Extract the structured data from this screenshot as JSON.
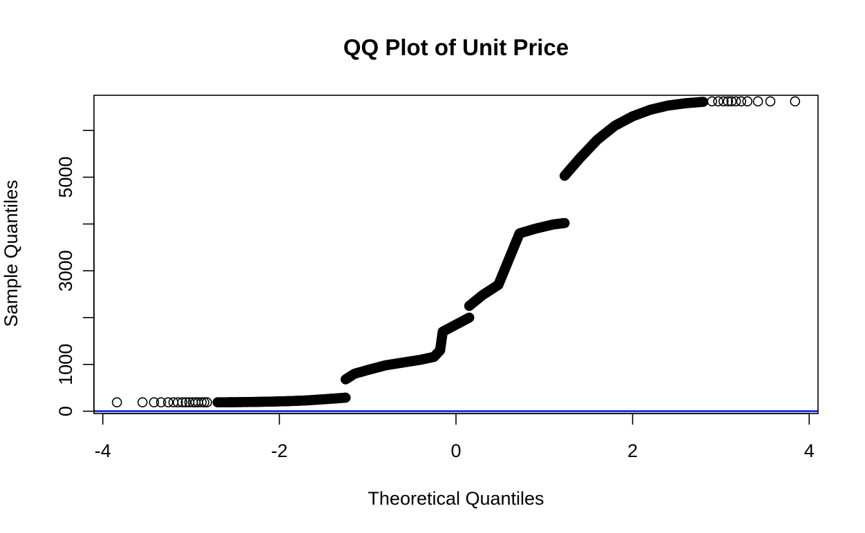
{
  "chart_data": {
    "type": "scatter",
    "title": "QQ Plot of Unit Price",
    "xlabel": "Theoretical Quantiles",
    "ylabel": "Sample Quantiles",
    "xlim": [
      -4.1,
      4.1
    ],
    "ylim": [
      -50,
      6750
    ],
    "x_ticks": [
      -4,
      -2,
      0,
      2,
      4
    ],
    "x_tick_labels": [
      "-4",
      "-2",
      "0",
      "2",
      "4"
    ],
    "y_ticks": [
      0,
      1000,
      2000,
      3000,
      4000,
      5000,
      6000
    ],
    "y_tick_labels": [
      "0",
      "1000",
      "",
      "3000",
      "",
      "5000",
      ""
    ],
    "grid": false,
    "legend": "none",
    "reference_line": {
      "slope": 0,
      "intercept": 0,
      "color": "#1a33d6"
    },
    "point_color": "#000000",
    "marker": "open-circle",
    "series": [
      {
        "values": [
          {
            "x": -3.84,
            "y": 190
          },
          {
            "x": -3.55,
            "y": 190
          },
          {
            "x": -3.42,
            "y": 190
          },
          {
            "x": -3.34,
            "y": 190
          },
          {
            "x": -3.26,
            "y": 190
          },
          {
            "x": -3.2,
            "y": 190
          },
          {
            "x": -3.15,
            "y": 190
          },
          {
            "x": -3.1,
            "y": 190
          },
          {
            "x": -3.06,
            "y": 190
          },
          {
            "x": -3.02,
            "y": 190
          },
          {
            "x": -2.98,
            "y": 190
          },
          {
            "x": -2.95,
            "y": 190
          },
          {
            "x": -2.92,
            "y": 190
          },
          {
            "x": -2.88,
            "y": 190
          },
          {
            "x": -2.85,
            "y": 190
          },
          {
            "x": -2.82,
            "y": 190
          },
          {
            "x": -2.7,
            "y": 190
          },
          {
            "x": -2.5,
            "y": 193
          },
          {
            "x": -2.3,
            "y": 198
          },
          {
            "x": -2.1,
            "y": 205
          },
          {
            "x": -1.9,
            "y": 215
          },
          {
            "x": -1.7,
            "y": 230
          },
          {
            "x": -1.5,
            "y": 255
          },
          {
            "x": -1.35,
            "y": 275
          },
          {
            "x": -1.25,
            "y": 290
          },
          {
            "x": -1.25,
            "y": 680
          },
          {
            "x": -1.15,
            "y": 800
          },
          {
            "x": -1.0,
            "y": 880
          },
          {
            "x": -0.8,
            "y": 980
          },
          {
            "x": -0.6,
            "y": 1040
          },
          {
            "x": -0.4,
            "y": 1100
          },
          {
            "x": -0.25,
            "y": 1160
          },
          {
            "x": -0.18,
            "y": 1300
          },
          {
            "x": -0.15,
            "y": 1700
          },
          {
            "x": 0.0,
            "y": 1850
          },
          {
            "x": 0.15,
            "y": 2000
          },
          {
            "x": 0.15,
            "y": 2250
          },
          {
            "x": 0.3,
            "y": 2480
          },
          {
            "x": 0.48,
            "y": 2700
          },
          {
            "x": 0.6,
            "y": 3250
          },
          {
            "x": 0.72,
            "y": 3800
          },
          {
            "x": 0.9,
            "y": 3900
          },
          {
            "x": 1.1,
            "y": 3990
          },
          {
            "x": 1.23,
            "y": 4020
          },
          {
            "x": 1.23,
            "y": 5030
          },
          {
            "x": 1.4,
            "y": 5400
          },
          {
            "x": 1.6,
            "y": 5800
          },
          {
            "x": 1.8,
            "y": 6100
          },
          {
            "x": 2.0,
            "y": 6300
          },
          {
            "x": 2.2,
            "y": 6440
          },
          {
            "x": 2.4,
            "y": 6530
          },
          {
            "x": 2.6,
            "y": 6580
          },
          {
            "x": 2.8,
            "y": 6610
          },
          {
            "x": 2.9,
            "y": 6620
          },
          {
            "x": 2.97,
            "y": 6620
          },
          {
            "x": 3.03,
            "y": 6620
          },
          {
            "x": 3.08,
            "y": 6620
          },
          {
            "x": 3.12,
            "y": 6620
          },
          {
            "x": 3.17,
            "y": 6620
          },
          {
            "x": 3.23,
            "y": 6620
          },
          {
            "x": 3.3,
            "y": 6620
          },
          {
            "x": 3.42,
            "y": 6620
          },
          {
            "x": 3.56,
            "y": 6620
          },
          {
            "x": 3.84,
            "y": 6620
          }
        ]
      }
    ]
  }
}
